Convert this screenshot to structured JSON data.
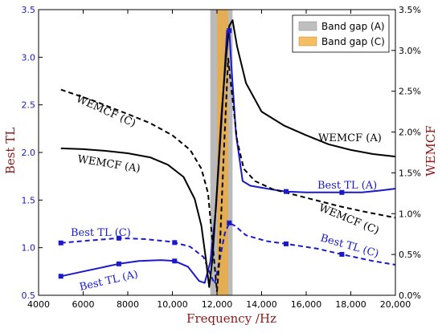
{
  "chart_data": {
    "type": "line",
    "xlabel": "Frequency /Hz",
    "ylabel_left": "Best TL",
    "ylabel_right": "WEMCF",
    "xlim": [
      4000,
      20000
    ],
    "ylim_left": [
      0.5,
      3.5
    ],
    "ylim_right": [
      0,
      3.5
    ],
    "x_ticks": [
      4000,
      6000,
      8000,
      10000,
      12000,
      14000,
      16000,
      18000,
      20000
    ],
    "x_tick_labels": [
      "4000",
      "6000",
      "8000",
      "10,000",
      "12,000",
      "14,000",
      "16,000",
      "18,000",
      "20,000"
    ],
    "y_left_ticks": [
      0.5,
      1.0,
      1.5,
      2.0,
      2.5,
      3.0,
      3.5
    ],
    "y_left_tick_labels": [
      "0.5",
      "1.0",
      "1.5",
      "2.0",
      "2.5",
      "3.0",
      "3.5"
    ],
    "y_right_ticks": [
      0,
      0.5,
      1.0,
      1.5,
      2.0,
      2.5,
      3.0,
      3.5
    ],
    "y_right_tick_labels": [
      "0.0%",
      "0.5%",
      "1.0%",
      "1.5%",
      "2.0%",
      "2.5%",
      "3.0%",
      "3.5%"
    ],
    "grid": false,
    "legend_position": "top-right",
    "bands": [
      {
        "name": "Band gap (A)",
        "x0": 11700,
        "x1": 12700,
        "color": "#a9a9a9"
      },
      {
        "name": "Band gap (C)",
        "x0": 12000,
        "x1": 12500,
        "color": "#f0a830"
      }
    ],
    "series": [
      {
        "axis": "left",
        "color": "#1a1acc",
        "style": "solid",
        "x": [
          5000,
          6000,
          7000,
          7600,
          8500,
          9500,
          10100,
          10700,
          11200,
          11450,
          11700,
          11950,
          12200,
          12450,
          12550,
          12650,
          12850,
          13150,
          13500,
          14000,
          14500,
          15100,
          16000,
          17000,
          17600,
          18500,
          19300,
          20000
        ],
        "y": [
          0.7,
          0.75,
          0.8,
          0.83,
          0.86,
          0.87,
          0.86,
          0.8,
          0.65,
          0.63,
          0.85,
          1.4,
          2.3,
          3.28,
          3.28,
          2.9,
          2.2,
          1.7,
          1.65,
          1.63,
          1.61,
          1.59,
          1.58,
          1.58,
          1.58,
          1.58,
          1.6,
          1.62
        ]
      },
      {
        "axis": "left",
        "color": "#1a1acc",
        "style": "dashed",
        "x": [
          5000,
          6500,
          7600,
          8800,
          10000,
          10800,
          11400,
          11700,
          11900,
          12100,
          12350,
          12550,
          12800,
          13300,
          14200,
          15100,
          16500,
          17600,
          19000,
          20000
        ],
        "y": [
          1.05,
          1.08,
          1.1,
          1.09,
          1.06,
          1.01,
          0.9,
          0.72,
          0.62,
          0.85,
          1.15,
          1.26,
          1.23,
          1.13,
          1.07,
          1.04,
          0.99,
          0.93,
          0.86,
          0.82
        ]
      },
      {
        "axis": "right",
        "color": "#000000",
        "style": "solid",
        "x": [
          5000,
          6000,
          7000,
          8000,
          9000,
          9800,
          10500,
          11000,
          11300,
          11500,
          11650,
          11800,
          12000,
          12200,
          12400,
          12550,
          12700,
          12900,
          13300,
          14000,
          15000,
          16000,
          17000,
          18000,
          19000,
          20000
        ],
        "y": [
          1.8,
          1.79,
          1.77,
          1.74,
          1.69,
          1.6,
          1.45,
          1.18,
          0.85,
          0.45,
          0.1,
          0.45,
          1.3,
          2.2,
          2.9,
          3.3,
          3.37,
          3.05,
          2.6,
          2.25,
          2.08,
          1.96,
          1.85,
          1.78,
          1.73,
          1.7
        ]
      },
      {
        "axis": "right",
        "color": "#000000",
        "style": "dashed",
        "x": [
          5000,
          6500,
          8000,
          9000,
          10000,
          10800,
          11300,
          11600,
          11850,
          12000,
          12100,
          12300,
          12500,
          12700,
          12900,
          13200,
          13700,
          14500,
          15500,
          16500,
          17500,
          18500,
          20000
        ],
        "y": [
          2.52,
          2.38,
          2.22,
          2.11,
          1.96,
          1.78,
          1.55,
          1.25,
          0.5,
          0.05,
          0.4,
          1.7,
          2.9,
          2.4,
          1.9,
          1.55,
          1.4,
          1.3,
          1.23,
          1.16,
          1.09,
          1.03,
          0.95
        ]
      }
    ],
    "annotations": [
      {
        "text": "WEMCF (C)",
        "color": "#000000"
      },
      {
        "text": "WEMCF (A)",
        "color": "#000000"
      },
      {
        "text": "WEMCF (A)",
        "color": "#000000"
      },
      {
        "text": "WEMCF (C)",
        "color": "#000000"
      },
      {
        "text": "Best TL (C)",
        "color": "#1a1acc"
      },
      {
        "text": "Best TL (A)",
        "color": "#1a1acc"
      },
      {
        "text": "Best TL (A)",
        "color": "#1a1acc"
      },
      {
        "text": "Best TL (C)",
        "color": "#1a1acc"
      }
    ]
  }
}
